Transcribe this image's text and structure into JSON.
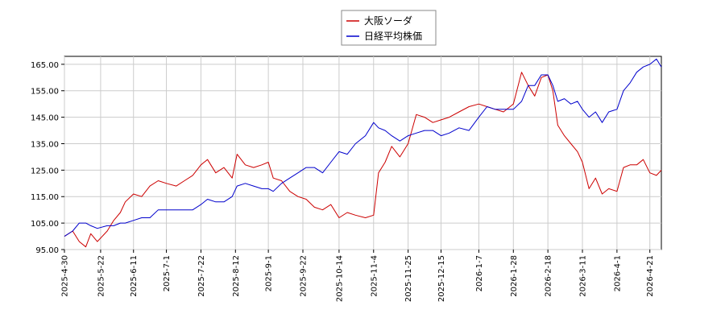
{
  "chart_data": {
    "type": "line",
    "title": "",
    "xlabel": "",
    "ylabel": "",
    "ylim": [
      95,
      168
    ],
    "grid": true,
    "legend_position": "top-center",
    "y_ticks": [
      95.0,
      105.0,
      115.0,
      125.0,
      135.0,
      145.0,
      155.0,
      165.0
    ],
    "y_tick_labels": [
      "95.00",
      "105.00",
      "115.00",
      "125.00",
      "135.00",
      "145.00",
      "155.00",
      "165.00"
    ],
    "x_ticks": [
      "2025-4-30",
      "2025-5-22",
      "2025-6-11",
      "2025-7-1",
      "2025-7-22",
      "2025-8-12",
      "2025-9-1",
      "2025-9-22",
      "2025-10-14",
      "2025-11-4",
      "2025-11-25",
      "2025-12-15",
      "2026-1-7",
      "2026-1-28",
      "2026-2-18",
      "2026-3-11",
      "2026-4-1",
      "2026-4-21"
    ],
    "x_range": [
      "2025-4-30",
      "2026-4-28"
    ],
    "series": [
      {
        "name": "大阪ソーダ",
        "color": "#cc0000",
        "points": [
          [
            "2025-4-30",
            100
          ],
          [
            "2025-5-5",
            102
          ],
          [
            "2025-5-9",
            98
          ],
          [
            "2025-5-13",
            96
          ],
          [
            "2025-5-16",
            101
          ],
          [
            "2025-5-20",
            98
          ],
          [
            "2025-5-26",
            102
          ],
          [
            "2025-5-30",
            106
          ],
          [
            "2025-6-3",
            109
          ],
          [
            "2025-6-6",
            113
          ],
          [
            "2025-6-11",
            116
          ],
          [
            "2025-6-16",
            115
          ],
          [
            "2025-6-21",
            119
          ],
          [
            "2025-6-26",
            121
          ],
          [
            "2025-7-1",
            120
          ],
          [
            "2025-7-7",
            119
          ],
          [
            "2025-7-12",
            121
          ],
          [
            "2025-7-17",
            123
          ],
          [
            "2025-7-22",
            127
          ],
          [
            "2025-7-26",
            129
          ],
          [
            "2025-7-31",
            124
          ],
          [
            "2025-8-5",
            126
          ],
          [
            "2025-8-10",
            122
          ],
          [
            "2025-8-13",
            131
          ],
          [
            "2025-8-18",
            127
          ],
          [
            "2025-8-23",
            126
          ],
          [
            "2025-8-28",
            127
          ],
          [
            "2025-9-1",
            128
          ],
          [
            "2025-9-4",
            122
          ],
          [
            "2025-9-9",
            121
          ],
          [
            "2025-9-14",
            117
          ],
          [
            "2025-9-19",
            115
          ],
          [
            "2025-9-24",
            114
          ],
          [
            "2025-9-29",
            111
          ],
          [
            "2025-10-4",
            110
          ],
          [
            "2025-10-9",
            112
          ],
          [
            "2025-10-14",
            107
          ],
          [
            "2025-10-19",
            109
          ],
          [
            "2025-10-24",
            108
          ],
          [
            "2025-10-30",
            107
          ],
          [
            "2025-11-4",
            108
          ],
          [
            "2025-11-7",
            124
          ],
          [
            "2025-11-11",
            128
          ],
          [
            "2025-11-15",
            134
          ],
          [
            "2025-11-20",
            130
          ],
          [
            "2025-11-25",
            135
          ],
          [
            "2025-11-30",
            146
          ],
          [
            "2025-12-5",
            145
          ],
          [
            "2025-12-10",
            143
          ],
          [
            "2025-12-15",
            144
          ],
          [
            "2025-12-20",
            145
          ],
          [
            "2025-12-26",
            147
          ],
          [
            "2026-1-1",
            149
          ],
          [
            "2026-1-7",
            150
          ],
          [
            "2026-1-12",
            149
          ],
          [
            "2026-1-17",
            148
          ],
          [
            "2026-1-22",
            147
          ],
          [
            "2026-1-28",
            150
          ],
          [
            "2026-2-2",
            162
          ],
          [
            "2026-2-6",
            157
          ],
          [
            "2026-2-10",
            153
          ],
          [
            "2026-2-14",
            160
          ],
          [
            "2026-2-18",
            161
          ],
          [
            "2026-2-21",
            155
          ],
          [
            "2026-2-24",
            142
          ],
          [
            "2026-2-28",
            138
          ],
          [
            "2026-3-4",
            135
          ],
          [
            "2026-3-8",
            132
          ],
          [
            "2026-3-11",
            128
          ],
          [
            "2026-3-15",
            118
          ],
          [
            "2026-3-19",
            122
          ],
          [
            "2026-3-23",
            116
          ],
          [
            "2026-3-27",
            118
          ],
          [
            "2026-4-1",
            117
          ],
          [
            "2026-4-5",
            126
          ],
          [
            "2026-4-9",
            127
          ],
          [
            "2026-4-13",
            127
          ],
          [
            "2026-4-17",
            129
          ],
          [
            "2026-4-21",
            124
          ],
          [
            "2026-4-25",
            123
          ],
          [
            "2026-4-28",
            125
          ]
        ]
      },
      {
        "name": "日経平均株価",
        "color": "#0000cc",
        "points": [
          [
            "2025-4-30",
            100
          ],
          [
            "2025-5-5",
            102
          ],
          [
            "2025-5-9",
            105
          ],
          [
            "2025-5-13",
            105
          ],
          [
            "2025-5-16",
            104
          ],
          [
            "2025-5-20",
            103
          ],
          [
            "2025-5-26",
            104
          ],
          [
            "2025-5-30",
            104
          ],
          [
            "2025-6-3",
            105
          ],
          [
            "2025-6-6",
            105
          ],
          [
            "2025-6-11",
            106
          ],
          [
            "2025-6-16",
            107
          ],
          [
            "2025-6-21",
            107
          ],
          [
            "2025-6-26",
            110
          ],
          [
            "2025-7-1",
            110
          ],
          [
            "2025-7-7",
            110
          ],
          [
            "2025-7-12",
            110
          ],
          [
            "2025-7-17",
            110
          ],
          [
            "2025-7-22",
            112
          ],
          [
            "2025-7-26",
            114
          ],
          [
            "2025-7-31",
            113
          ],
          [
            "2025-8-5",
            113
          ],
          [
            "2025-8-10",
            115
          ],
          [
            "2025-8-13",
            119
          ],
          [
            "2025-8-18",
            120
          ],
          [
            "2025-8-23",
            119
          ],
          [
            "2025-8-28",
            118
          ],
          [
            "2025-9-1",
            118
          ],
          [
            "2025-9-4",
            117
          ],
          [
            "2025-9-9",
            120
          ],
          [
            "2025-9-14",
            122
          ],
          [
            "2025-9-19",
            124
          ],
          [
            "2025-9-24",
            126
          ],
          [
            "2025-9-29",
            126
          ],
          [
            "2025-10-4",
            124
          ],
          [
            "2025-10-9",
            128
          ],
          [
            "2025-10-14",
            132
          ],
          [
            "2025-10-19",
            131
          ],
          [
            "2025-10-24",
            135
          ],
          [
            "2025-10-30",
            138
          ],
          [
            "2025-11-4",
            143
          ],
          [
            "2025-11-7",
            141
          ],
          [
            "2025-11-11",
            140
          ],
          [
            "2025-11-15",
            138
          ],
          [
            "2025-11-20",
            136
          ],
          [
            "2025-11-25",
            138
          ],
          [
            "2025-11-30",
            139
          ],
          [
            "2025-12-5",
            140
          ],
          [
            "2025-12-10",
            140
          ],
          [
            "2025-12-15",
            138
          ],
          [
            "2025-12-20",
            139
          ],
          [
            "2025-12-26",
            141
          ],
          [
            "2026-1-1",
            140
          ],
          [
            "2026-1-7",
            145
          ],
          [
            "2026-1-12",
            149
          ],
          [
            "2026-1-17",
            148
          ],
          [
            "2026-1-22",
            148
          ],
          [
            "2026-1-28",
            148
          ],
          [
            "2026-2-2",
            151
          ],
          [
            "2026-2-6",
            157
          ],
          [
            "2026-2-10",
            157
          ],
          [
            "2026-2-14",
            161
          ],
          [
            "2026-2-18",
            161
          ],
          [
            "2026-2-21",
            157
          ],
          [
            "2026-2-24",
            151
          ],
          [
            "2026-2-28",
            152
          ],
          [
            "2026-3-4",
            150
          ],
          [
            "2026-3-8",
            151
          ],
          [
            "2026-3-11",
            148
          ],
          [
            "2026-3-15",
            145
          ],
          [
            "2026-3-19",
            147
          ],
          [
            "2026-3-23",
            143
          ],
          [
            "2026-3-27",
            147
          ],
          [
            "2026-4-1",
            148
          ],
          [
            "2026-4-5",
            155
          ],
          [
            "2026-4-9",
            158
          ],
          [
            "2026-4-13",
            162
          ],
          [
            "2026-4-17",
            164
          ],
          [
            "2026-4-21",
            165
          ],
          [
            "2026-4-25",
            167
          ],
          [
            "2026-4-28",
            164
          ]
        ]
      }
    ]
  }
}
